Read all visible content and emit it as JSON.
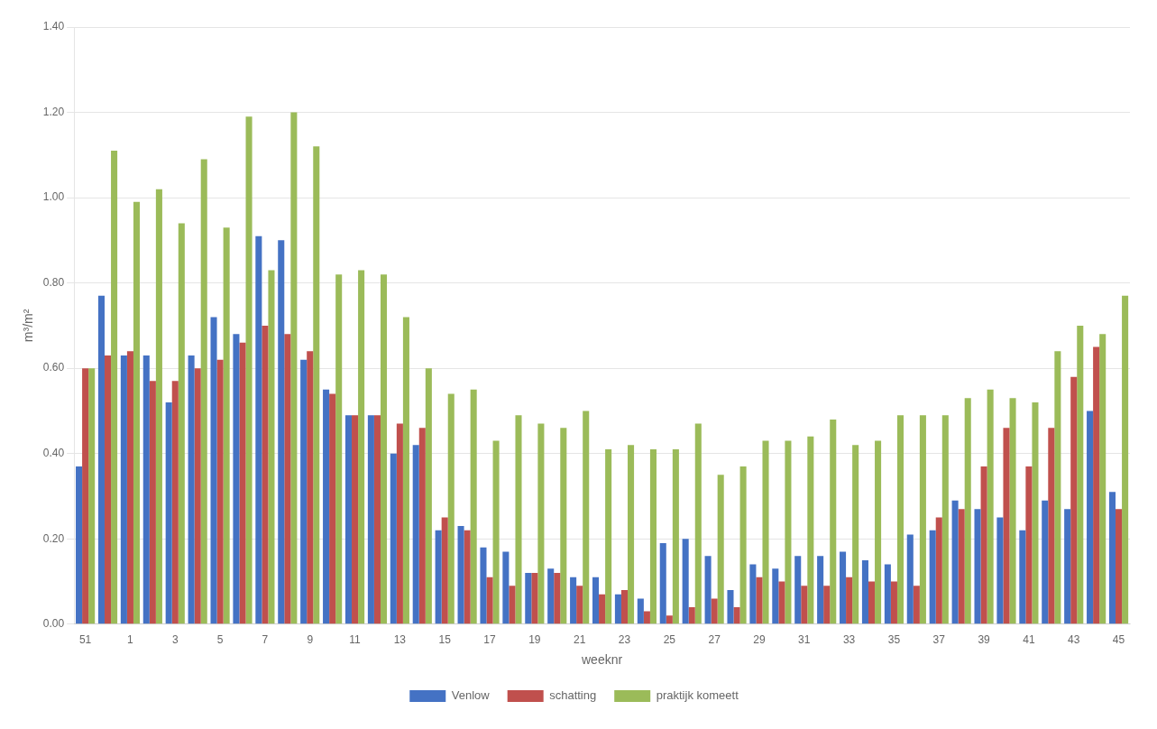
{
  "chart_data": {
    "type": "bar",
    "x_label": "weeknr",
    "y_label": "m³/m²",
    "categories": [
      "51",
      null,
      "1",
      null,
      "3",
      null,
      "5",
      null,
      "7",
      null,
      "9",
      null,
      "11",
      null,
      "13",
      null,
      "15",
      null,
      "17",
      null,
      "19",
      null,
      "21",
      null,
      "23",
      null,
      "25",
      null,
      "27",
      null,
      "29",
      null,
      "31",
      null,
      "33",
      null,
      "35",
      null,
      "37",
      null,
      "39",
      null,
      "41",
      null,
      "43",
      null,
      "45"
    ],
    "series": [
      {
        "name": "Venlow",
        "color": "#4472C4",
        "values": [
          0.37,
          0.77,
          0.63,
          0.63,
          0.52,
          0.63,
          0.72,
          0.68,
          0.91,
          0.9,
          0.62,
          0.55,
          0.49,
          0.49,
          0.4,
          0.42,
          0.22,
          0.23,
          0.18,
          0.17,
          0.12,
          0.13,
          0.11,
          0.11,
          0.07,
          0.06,
          0.19,
          0.2,
          0.16,
          0.08,
          0.14,
          0.13,
          0.16,
          0.16,
          0.17,
          0.15,
          0.14,
          0.21,
          0.22,
          0.29,
          0.27,
          0.25,
          0.22,
          0.29,
          0.27,
          0.5,
          0.31
        ]
      },
      {
        "name": "schatting",
        "color": "#C0504D",
        "values": [
          0.6,
          0.63,
          0.64,
          0.57,
          0.57,
          0.6,
          0.62,
          0.66,
          0.7,
          0.68,
          0.64,
          0.54,
          0.49,
          0.49,
          0.47,
          0.46,
          0.25,
          0.22,
          0.11,
          0.09,
          0.12,
          0.12,
          0.09,
          0.07,
          0.08,
          0.03,
          0.02,
          0.04,
          0.06,
          0.04,
          0.11,
          0.1,
          0.09,
          0.09,
          0.11,
          0.1,
          0.1,
          0.09,
          0.25,
          0.27,
          0.37,
          0.46,
          0.37,
          0.46,
          0.58,
          0.65,
          0.27
        ]
      },
      {
        "name": "praktijk komeett",
        "color": "#9BBB59",
        "values": [
          0.6,
          1.11,
          0.99,
          1.02,
          0.94,
          1.09,
          0.93,
          1.19,
          0.83,
          1.2,
          1.12,
          0.82,
          0.83,
          0.82,
          0.72,
          0.6,
          0.54,
          0.55,
          0.43,
          0.49,
          0.47,
          0.46,
          0.5,
          0.41,
          0.42,
          0.41,
          0.41,
          0.47,
          0.35,
          0.37,
          0.43,
          0.43,
          0.44,
          0.48,
          0.42,
          0.43,
          0.49,
          0.49,
          0.49,
          0.53,
          0.55,
          0.53,
          0.52,
          0.64,
          0.7,
          0.68,
          0.77
        ]
      }
    ],
    "ylim": [
      0.0,
      1.4
    ],
    "yticks": [
      {
        "value": 0.0,
        "label": "0.00"
      },
      {
        "value": 0.2,
        "label": "0.20"
      },
      {
        "value": 0.4,
        "label": "0.40"
      },
      {
        "value": 0.6,
        "label": "0.60"
      },
      {
        "value": 0.8,
        "label": "0.80"
      },
      {
        "value": 1.0,
        "label": "1.00"
      },
      {
        "value": 1.2,
        "label": "1.20"
      },
      {
        "value": 1.4,
        "label": "1.40"
      }
    ],
    "grid": true,
    "legend": "bottom"
  }
}
